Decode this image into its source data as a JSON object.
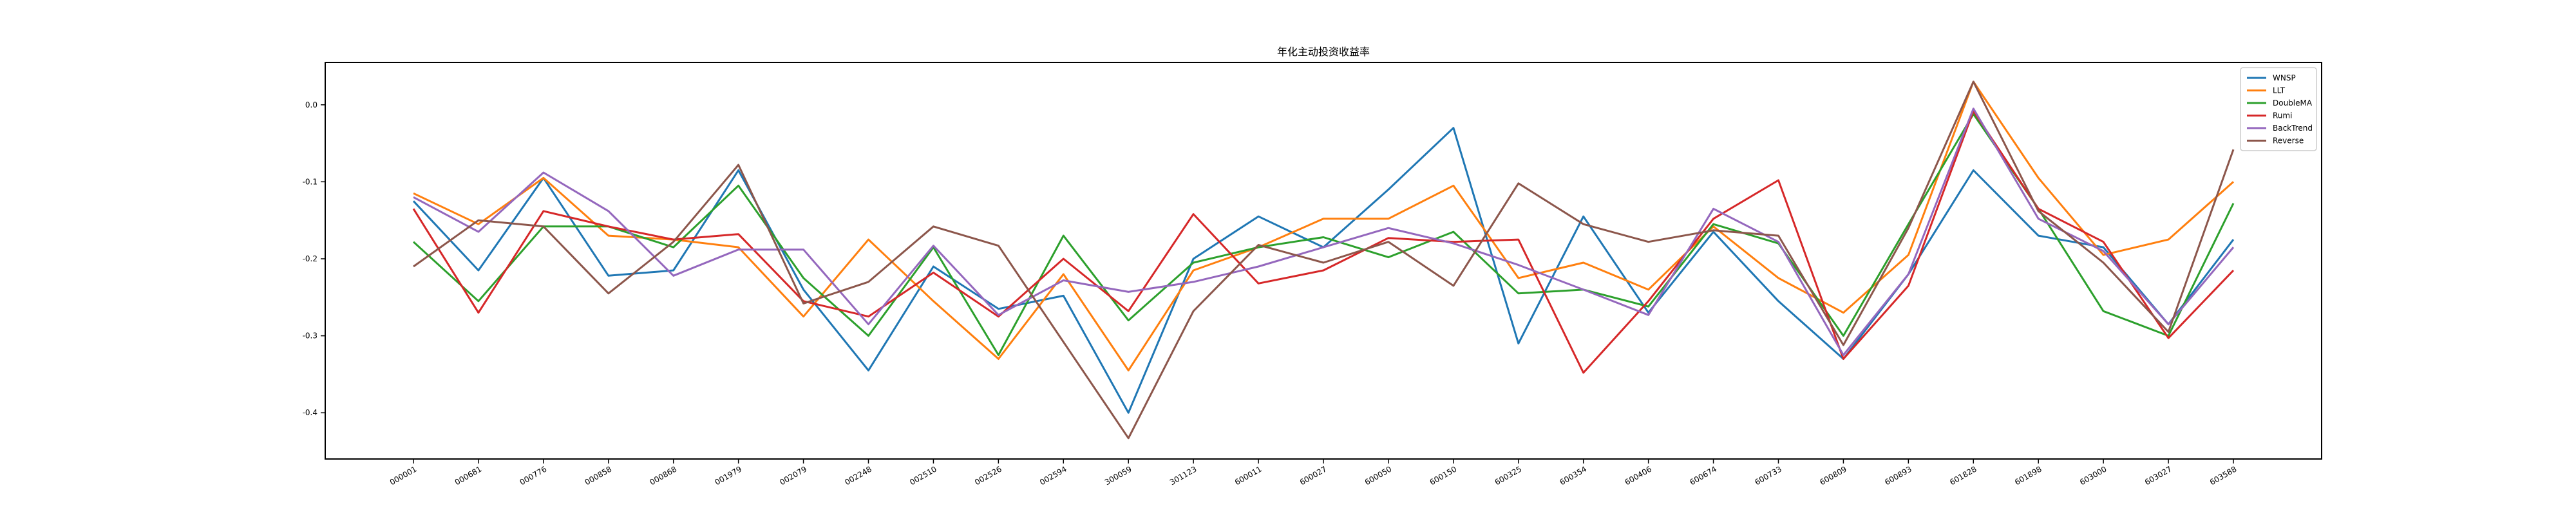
{
  "chart_data": {
    "type": "line",
    "title": "年化主动投资收益率",
    "xlabel": "",
    "ylabel": "",
    "ylim": [
      -0.46,
      0.055
    ],
    "yticks": [
      0.0,
      -0.1,
      -0.2,
      -0.3,
      -0.4
    ],
    "y_tick_labels": [
      "0.0",
      "-0.1",
      "-0.2",
      "-0.3",
      "-0.4"
    ],
    "grid": false,
    "legend_position": "top-right",
    "categories": [
      "000001",
      "000681",
      "000776",
      "000858",
      "000868",
      "001979",
      "002079",
      "002248",
      "002510",
      "002526",
      "002594",
      "300059",
      "301123",
      "600011",
      "600027",
      "600050",
      "600150",
      "600325",
      "600354",
      "600406",
      "600674",
      "600733",
      "600809",
      "600893",
      "601828",
      "601898",
      "603000",
      "603027",
      "603588"
    ],
    "series": [
      {
        "name": "WNSP",
        "color": "#1f77b4",
        "values": [
          -0.125,
          -0.215,
          -0.095,
          -0.222,
          -0.215,
          -0.085,
          -0.24,
          -0.345,
          -0.21,
          -0.265,
          -0.248,
          -0.4,
          -0.2,
          -0.145,
          -0.185,
          -0.11,
          -0.03,
          -0.31,
          -0.145,
          -0.27,
          -0.165,
          -0.255,
          -0.33,
          -0.22,
          -0.085,
          -0.17,
          -0.185,
          -0.285,
          -0.175
        ]
      },
      {
        "name": "LLT",
        "color": "#ff7f0e",
        "values": [
          -0.115,
          -0.155,
          -0.095,
          -0.17,
          -0.175,
          -0.185,
          -0.275,
          -0.175,
          -0.255,
          -0.33,
          -0.22,
          -0.345,
          -0.215,
          -0.185,
          -0.148,
          -0.148,
          -0.105,
          -0.225,
          -0.205,
          -0.24,
          -0.158,
          -0.225,
          -0.27,
          -0.195,
          0.03,
          -0.095,
          -0.195,
          -0.175,
          -0.1
        ]
      },
      {
        "name": "DoubleMA",
        "color": "#2ca02c",
        "values": [
          -0.178,
          -0.255,
          -0.158,
          -0.158,
          -0.185,
          -0.105,
          -0.225,
          -0.3,
          -0.185,
          -0.325,
          -0.17,
          -0.28,
          -0.205,
          -0.185,
          -0.172,
          -0.198,
          -0.165,
          -0.245,
          -0.24,
          -0.262,
          -0.155,
          -0.18,
          -0.3,
          -0.155,
          -0.012,
          -0.135,
          -0.268,
          -0.3,
          -0.128
        ]
      },
      {
        "name": "Rumi",
        "color": "#d62728",
        "values": [
          -0.135,
          -0.27,
          -0.138,
          -0.158,
          -0.175,
          -0.168,
          -0.255,
          -0.275,
          -0.218,
          -0.275,
          -0.2,
          -0.268,
          -0.142,
          -0.232,
          -0.215,
          -0.173,
          -0.178,
          -0.175,
          -0.348,
          -0.255,
          -0.148,
          -0.098,
          -0.33,
          -0.235,
          -0.008,
          -0.135,
          -0.178,
          -0.303,
          -0.215
        ]
      },
      {
        "name": "BackTrend",
        "color": "#9467bd",
        "values": [
          -0.12,
          -0.165,
          -0.088,
          -0.138,
          -0.222,
          -0.188,
          -0.188,
          -0.285,
          -0.183,
          -0.273,
          -0.228,
          -0.243,
          -0.23,
          -0.21,
          -0.185,
          -0.16,
          -0.18,
          -0.208,
          -0.24,
          -0.273,
          -0.135,
          -0.178,
          -0.325,
          -0.22,
          -0.005,
          -0.148,
          -0.19,
          -0.285,
          -0.185
        ]
      },
      {
        "name": "Reverse",
        "color": "#8c564b",
        "values": [
          -0.21,
          -0.15,
          -0.158,
          -0.245,
          -0.178,
          -0.078,
          -0.258,
          -0.23,
          -0.158,
          -0.183,
          -0.308,
          -0.433,
          -0.268,
          -0.182,
          -0.205,
          -0.178,
          -0.235,
          -0.102,
          -0.155,
          -0.178,
          -0.163,
          -0.17,
          -0.312,
          -0.16,
          0.03,
          -0.138,
          -0.205,
          -0.295,
          -0.058
        ]
      }
    ]
  }
}
